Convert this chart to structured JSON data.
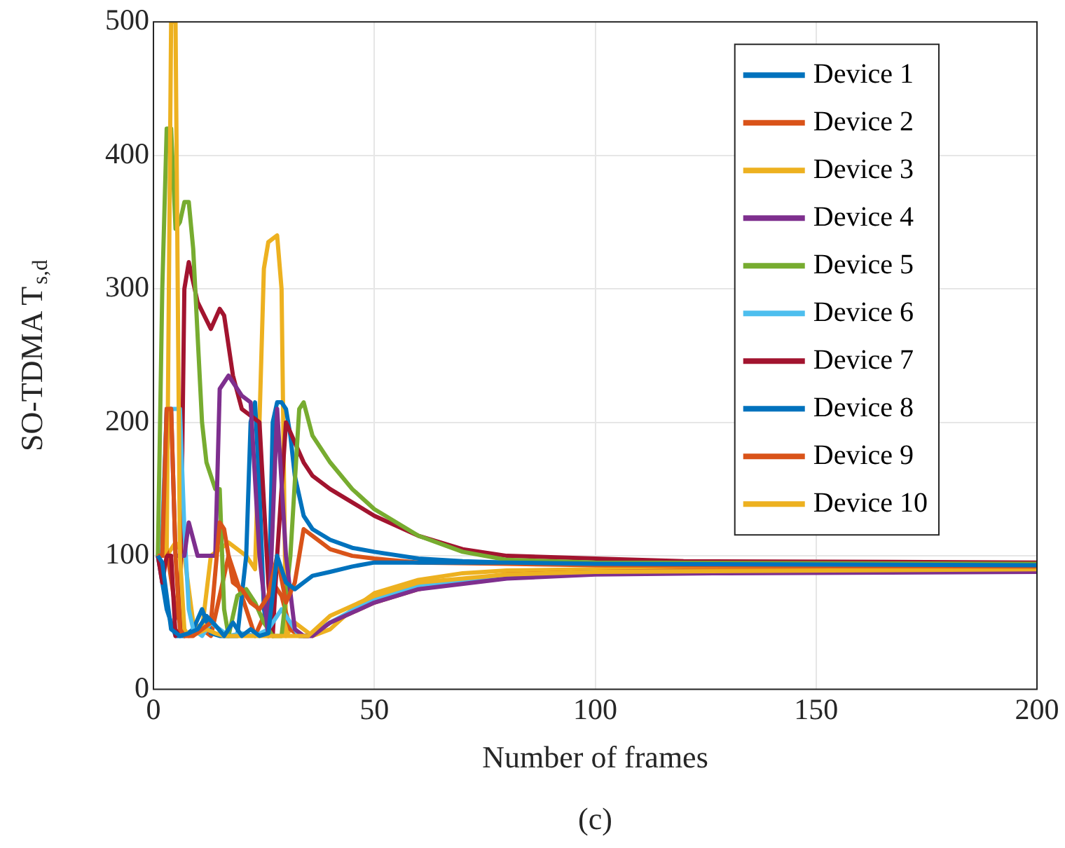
{
  "chart_data": {
    "type": "line",
    "xlabel": "Number of frames",
    "ylabel": "SO-TDMA T$_{s,d}$",
    "annotations": [
      "(c)"
    ],
    "xlim": [
      0,
      200
    ],
    "xticks": [
      0,
      50,
      100,
      150,
      200
    ],
    "ylim": [
      0,
      500
    ],
    "yticks": [
      0,
      100,
      200,
      300,
      400,
      500
    ],
    "grid": true,
    "legend": "top right",
    "series": [
      {
        "name": "Device 1",
        "color": "#0072bd",
        "x": [
          1,
          2,
          4,
          6,
          8,
          10,
          12,
          14,
          16,
          18,
          20,
          22,
          24,
          26,
          28,
          30,
          32,
          34,
          36,
          40,
          45,
          50,
          60,
          80,
          100,
          200
        ],
        "values": [
          100,
          95,
          45,
          40,
          42,
          45,
          55,
          48,
          40,
          50,
          40,
          45,
          40,
          42,
          100,
          80,
          75,
          80,
          85,
          88,
          92,
          95,
          95,
          95,
          94,
          93
        ]
      },
      {
        "name": "Device 2",
        "color": "#d95319",
        "x": [
          1,
          2,
          3,
          4,
          5,
          6,
          7,
          9,
          11,
          13,
          15,
          16,
          18,
          20,
          22,
          24,
          26,
          28,
          30,
          32,
          34,
          36,
          40,
          45,
          50,
          60,
          80,
          100,
          200
        ],
        "values": [
          100,
          100,
          210,
          210,
          100,
          45,
          40,
          40,
          45,
          50,
          125,
          120,
          80,
          75,
          65,
          60,
          70,
          100,
          65,
          80,
          120,
          115,
          105,
          100,
          98,
          95,
          94,
          93,
          92
        ]
      },
      {
        "name": "Device 3",
        "color": "#edb120",
        "x": [
          1,
          2,
          3,
          4,
          5,
          6,
          7,
          8,
          10,
          12,
          14,
          16,
          20,
          24,
          28,
          32,
          35,
          40,
          50,
          60,
          80,
          100,
          200
        ],
        "values": [
          100,
          100,
          105,
          500,
          500,
          100,
          45,
          40,
          42,
          45,
          42,
          40,
          40,
          40,
          40,
          40,
          40,
          55,
          70,
          80,
          86,
          88,
          90
        ]
      },
      {
        "name": "Device 4",
        "color": "#7e2f8e",
        "x": [
          1,
          2,
          3,
          4,
          5,
          6,
          7,
          8,
          10,
          12,
          14,
          15,
          16,
          17,
          18,
          20,
          22,
          24,
          26,
          28,
          30,
          32,
          34,
          36,
          40,
          50,
          60,
          80,
          100,
          130,
          200
        ],
        "values": [
          100,
          100,
          210,
          210,
          100,
          100,
          100,
          125,
          100,
          100,
          100,
          225,
          230,
          235,
          230,
          220,
          215,
          100,
          40,
          210,
          100,
          45,
          40,
          40,
          50,
          65,
          75,
          83,
          86,
          87,
          88
        ]
      },
      {
        "name": "Device 5",
        "color": "#77ac30",
        "x": [
          1,
          2,
          3,
          4,
          5,
          6,
          7,
          8,
          9,
          11,
          12,
          14,
          15,
          16,
          17,
          19,
          21,
          23,
          25,
          27,
          29,
          31,
          33,
          34,
          36,
          40,
          45,
          50,
          60,
          70,
          80,
          100,
          200
        ],
        "values": [
          100,
          300,
          420,
          420,
          345,
          350,
          365,
          365,
          330,
          200,
          170,
          150,
          150,
          60,
          40,
          70,
          75,
          65,
          50,
          40,
          40,
          100,
          210,
          215,
          190,
          170,
          150,
          135,
          115,
          103,
          97,
          95,
          94
        ]
      },
      {
        "name": "Device 6",
        "color": "#4dbeee",
        "x": [
          1,
          2,
          3,
          4,
          5,
          6,
          7,
          8,
          9,
          11,
          13,
          15,
          17,
          20,
          23,
          26,
          29,
          31,
          33,
          35,
          40,
          50,
          60,
          80,
          100,
          200
        ],
        "values": [
          100,
          120,
          210,
          210,
          210,
          210,
          120,
          60,
          45,
          40,
          50,
          45,
          40,
          42,
          40,
          45,
          60,
          50,
          40,
          40,
          50,
          68,
          78,
          85,
          88,
          89
        ]
      },
      {
        "name": "Device 7",
        "color": "#a2142f",
        "x": [
          1,
          2,
          3,
          4,
          5,
          6,
          7,
          8,
          10,
          13,
          15,
          16,
          18,
          20,
          22,
          24,
          26,
          27,
          28,
          30,
          32,
          34,
          36,
          40,
          45,
          50,
          60,
          70,
          80,
          100,
          120,
          200
        ],
        "values": [
          100,
          80,
          100,
          100,
          40,
          45,
          300,
          320,
          290,
          270,
          285,
          280,
          235,
          210,
          205,
          200,
          80,
          40,
          100,
          200,
          185,
          170,
          160,
          150,
          140,
          130,
          115,
          105,
          100,
          98,
          96,
          95
        ]
      },
      {
        "name": "Device 8",
        "color": "#0072bd",
        "x": [
          1,
          3,
          5,
          7,
          9,
          11,
          13,
          15,
          17,
          19,
          21,
          22,
          23,
          24,
          25,
          26,
          27,
          28,
          29,
          30,
          31,
          32,
          34,
          36,
          40,
          45,
          50,
          60,
          70,
          80,
          100,
          200
        ],
        "values": [
          100,
          60,
          40,
          40,
          45,
          60,
          42,
          40,
          40,
          40,
          100,
          200,
          215,
          150,
          60,
          45,
          200,
          215,
          215,
          210,
          190,
          160,
          130,
          120,
          112,
          106,
          103,
          98,
          96,
          95,
          94,
          93
        ]
      },
      {
        "name": "Device 9",
        "color": "#d95319",
        "x": [
          1,
          3,
          5,
          7,
          9,
          11,
          13,
          15,
          17,
          19,
          21,
          23,
          25,
          27,
          29,
          31,
          33,
          35,
          40,
          50,
          60,
          70,
          80,
          100,
          120,
          200
        ],
        "values": [
          100,
          105,
          60,
          40,
          42,
          45,
          40,
          70,
          100,
          80,
          60,
          40,
          55,
          80,
          70,
          45,
          40,
          40,
          50,
          65,
          75,
          82,
          86,
          88,
          89,
          90
        ]
      },
      {
        "name": "Device 10",
        "color": "#edb120",
        "x": [
          1,
          3,
          5,
          7,
          9,
          11,
          13,
          15,
          17,
          19,
          21,
          23,
          24,
          25,
          26,
          28,
          29,
          30,
          32,
          34,
          36,
          40,
          45,
          50,
          60,
          70,
          80,
          100,
          120,
          200
        ],
        "values": [
          100,
          100,
          110,
          100,
          50,
          45,
          100,
          105,
          110,
          105,
          100,
          90,
          200,
          315,
          335,
          340,
          300,
          40,
          50,
          45,
          40,
          45,
          60,
          72,
          82,
          87,
          89,
          90,
          91,
          91
        ]
      }
    ]
  }
}
